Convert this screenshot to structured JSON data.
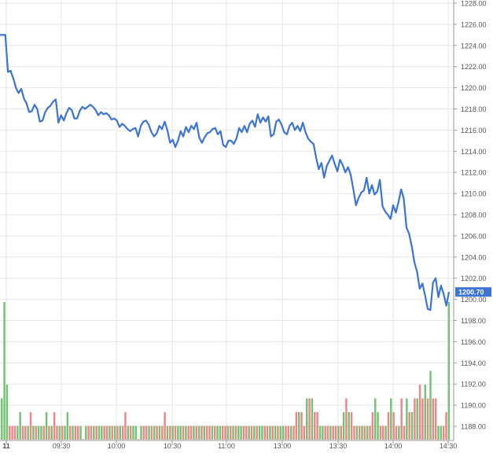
{
  "chart_data": {
    "type": "line",
    "colors": {
      "price_line": "#3b74d6",
      "price_tag_bg": "#3b74d6",
      "price_tag_text": "#ffffff",
      "volume_up": "#5cb85c",
      "volume_down": "#e57373",
      "grid": "#e6e6e6",
      "axis": "#9a9a9a",
      "label": "#555555"
    },
    "y_axis": {
      "ticks": [
        "1228.00",
        "1226.00",
        "1224.00",
        "1222.00",
        "1220.00",
        "1218.00",
        "1216.00",
        "1214.00",
        "1212.00",
        "1210.00",
        "1208.00",
        "1206.00",
        "1204.00",
        "1202.00",
        "1200.00",
        "1198.00",
        "1196.00",
        "1194.00",
        "1192.00",
        "1190.00",
        "1188.00"
      ],
      "range": [
        1186.0,
        1228.8
      ],
      "position": "right"
    },
    "x_axis": {
      "ticks": [
        "11",
        "09:30",
        "10:00",
        "10:30",
        "11:00",
        "13:00",
        "13:30",
        "14:00",
        "14:30"
      ]
    },
    "last_price_label": "1200.70",
    "grid": true,
    "price_series": {
      "values": [
        1225.0,
        1225.0,
        1225.0,
        1221.5,
        1221.6,
        1220.9,
        1220.0,
        1219.5,
        1219.9,
        1219.0,
        1218.5,
        1217.7,
        1217.8,
        1218.4,
        1218.0,
        1216.8,
        1216.9,
        1217.7,
        1218.1,
        1218.3,
        1218.7,
        1218.9,
        1216.7,
        1217.4,
        1216.9,
        1217.6,
        1218.1,
        1217.9,
        1217.1,
        1217.1,
        1217.8,
        1218.2,
        1218.0,
        1218.2,
        1218.4,
        1218.2,
        1217.9,
        1217.4,
        1217.7,
        1217.5,
        1217.6,
        1217.4,
        1217.0,
        1217.1,
        1216.9,
        1216.3,
        1216.6,
        1216.4,
        1216.1,
        1215.9,
        1216.1,
        1216.2,
        1215.4,
        1216.4,
        1216.8,
        1216.9,
        1216.5,
        1215.8,
        1215.4,
        1215.7,
        1216.4,
        1216.1,
        1216.8,
        1216.0,
        1214.8,
        1215.1,
        1214.4,
        1215.0,
        1215.9,
        1215.4,
        1216.3,
        1215.8,
        1216.4,
        1216.1,
        1216.7,
        1215.3,
        1214.8,
        1215.3,
        1215.7,
        1215.8,
        1216.1,
        1216.2,
        1215.6,
        1215.9,
        1214.6,
        1214.4,
        1215.0,
        1215.0,
        1214.7,
        1215.2,
        1216.2,
        1215.8,
        1216.4,
        1215.8,
        1216.6,
        1216.9,
        1216.3,
        1217.5,
        1216.7,
        1217.2,
        1216.8,
        1217.3,
        1215.4,
        1215.6,
        1216.8,
        1217.0,
        1216.5,
        1215.8,
        1215.6,
        1216.4,
        1216.7,
        1216.0,
        1216.4,
        1215.9,
        1216.7,
        1215.8,
        1215.2,
        1214.9,
        1214.7,
        1213.4,
        1212.3,
        1212.9,
        1211.5,
        1212.6,
        1213.1,
        1213.6,
        1212.8,
        1212.1,
        1213.2,
        1212.7,
        1212.0,
        1212.5,
        1211.8,
        1210.4,
        1208.9,
        1209.6,
        1210.1,
        1210.3,
        1211.5,
        1210.0,
        1210.8,
        1209.9,
        1210.2,
        1211.3,
        1208.8,
        1208.3,
        1208.0,
        1207.6,
        1208.9,
        1208.2,
        1209.2,
        1210.4,
        1209.5,
        1206.8,
        1206.2,
        1205.0,
        1203.5,
        1202.6,
        1201.0,
        1201.5,
        1200.4,
        1199.1,
        1199.0,
        1201.6,
        1202.0,
        1200.2,
        1201.3,
        1200.5,
        1199.4,
        1200.7
      ]
    },
    "volume_series": {
      "values": [
        0.3,
        1.0,
        0.4,
        0.1,
        0.1,
        0.1,
        0.1,
        0.2,
        0.1,
        0.1,
        0.1,
        0.2,
        0.1,
        0.1,
        0.1,
        0.1,
        0.1,
        0.2,
        0.1,
        0.1,
        0.2,
        0.1,
        0.1,
        0.1,
        0.1,
        0.2,
        0.1,
        0.1,
        0.1,
        0.1,
        0.1,
        0.0,
        0.1,
        0.1,
        0.1,
        0.1,
        0.1,
        0.1,
        0.1,
        0.1,
        0.1,
        0.1,
        0.1,
        0.1,
        0.1,
        0.1,
        0.1,
        0.2,
        0.1,
        0.1,
        0.1,
        0.1,
        0.0,
        0.1,
        0.1,
        0.1,
        0.1,
        0.1,
        0.1,
        0.1,
        0.1,
        0.1,
        0.2,
        0.1,
        0.1,
        0.1,
        0.1,
        0.1,
        0.1,
        0.1,
        0.1,
        0.1,
        0.1,
        0.1,
        0.1,
        0.1,
        0.1,
        0.1,
        0.1,
        0.1,
        0.1,
        0.1,
        0.1,
        0.1,
        0.1,
        0.1,
        0.1,
        0.1,
        0.1,
        0.1,
        0.1,
        0.1,
        0.1,
        0.1,
        0.1,
        0.1,
        0.1,
        0.1,
        0.1,
        0.1,
        0.1,
        0.1,
        0.1,
        0.1,
        0.1,
        0.1,
        0.1,
        0.1,
        0.1,
        0.1,
        0.1,
        0.1,
        0.2,
        0.2,
        0.2,
        0.1,
        0.3,
        0.3,
        0.3,
        0.2,
        0.2,
        0.1,
        0.1,
        0.1,
        0.1,
        0.1,
        0.1,
        0.1,
        0.1,
        0.1,
        0.2,
        0.3,
        0.2,
        0.2,
        0.1,
        0.1,
        0.1,
        0.1,
        0.1,
        0.1,
        0.1,
        0.2,
        0.3,
        0.2,
        0.1,
        0.1,
        0.1,
        0.2,
        0.3,
        0.2,
        0.1,
        0.1,
        0.3,
        0.1,
        0.3,
        0.2,
        0.2,
        0.3,
        0.3,
        0.4,
        0.3,
        0.4,
        0.3,
        0.5,
        0.3,
        0.3,
        0.1,
        0.1,
        0.1,
        0.2,
        1.0
      ],
      "up": [
        1,
        1,
        1,
        0,
        0,
        0,
        1,
        1,
        0,
        0,
        1,
        0,
        1,
        0,
        1,
        1,
        0,
        1,
        0,
        1,
        0,
        0,
        1,
        0,
        1,
        1,
        0,
        1,
        0,
        0,
        1,
        0,
        1,
        0,
        0,
        1,
        0,
        1,
        1,
        0,
        0,
        1,
        0,
        1,
        0,
        1,
        0,
        0,
        1,
        0,
        1,
        1,
        0,
        1,
        0,
        0,
        1,
        0,
        1,
        0,
        1,
        0,
        0,
        1,
        0,
        1,
        0,
        1,
        1,
        0,
        1,
        0,
        0,
        1,
        0,
        1,
        0,
        1,
        0,
        0,
        1,
        0,
        1,
        1,
        0,
        0,
        1,
        0,
        1,
        0,
        1,
        1,
        0,
        0,
        1,
        0,
        1,
        0,
        1,
        1,
        0,
        0,
        1,
        0,
        1,
        0,
        1,
        1,
        0,
        0,
        1,
        0,
        0,
        1,
        0,
        0,
        1,
        0,
        1,
        0,
        0,
        1,
        1,
        0,
        0,
        1,
        0,
        0,
        1,
        0,
        1,
        0,
        1,
        0,
        0,
        1,
        0,
        1,
        0,
        1,
        0,
        0,
        1,
        1,
        0,
        0,
        1,
        0,
        1,
        0,
        0,
        1,
        0,
        0,
        1,
        0,
        1,
        0,
        1,
        0,
        0,
        1,
        0,
        1,
        0,
        0,
        1,
        1,
        0,
        0,
        1
      ]
    }
  }
}
